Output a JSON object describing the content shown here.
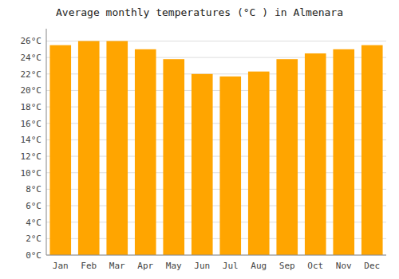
{
  "chart_data": {
    "type": "bar",
    "title": "Average monthly temperatures (°C ) in Almenara",
    "categories": [
      "Jan",
      "Feb",
      "Mar",
      "Apr",
      "May",
      "Jun",
      "Jul",
      "Aug",
      "Sep",
      "Oct",
      "Nov",
      "Dec"
    ],
    "values": [
      25.5,
      26.0,
      26.0,
      25.0,
      23.8,
      22.0,
      21.7,
      22.3,
      23.8,
      24.5,
      25.0,
      25.5
    ],
    "color": "#FFA500",
    "ylim": [
      0,
      27.5
    ],
    "yticks": [
      {
        "value": 0,
        "label": "0°C"
      },
      {
        "value": 2,
        "label": "2°C"
      },
      {
        "value": 4,
        "label": "4°C"
      },
      {
        "value": 6,
        "label": "6°C"
      },
      {
        "value": 8,
        "label": "8°C"
      },
      {
        "value": 10,
        "label": "10°C"
      },
      {
        "value": 12,
        "label": "12°C"
      },
      {
        "value": 14,
        "label": "14°C"
      },
      {
        "value": 16,
        "label": "16°C"
      },
      {
        "value": 18,
        "label": "18°C"
      },
      {
        "value": 20,
        "label": "20°C"
      },
      {
        "value": 22,
        "label": "22°C"
      },
      {
        "value": 24,
        "label": "24°C"
      },
      {
        "value": 26,
        "label": "26°C"
      }
    ],
    "grid": true
  }
}
